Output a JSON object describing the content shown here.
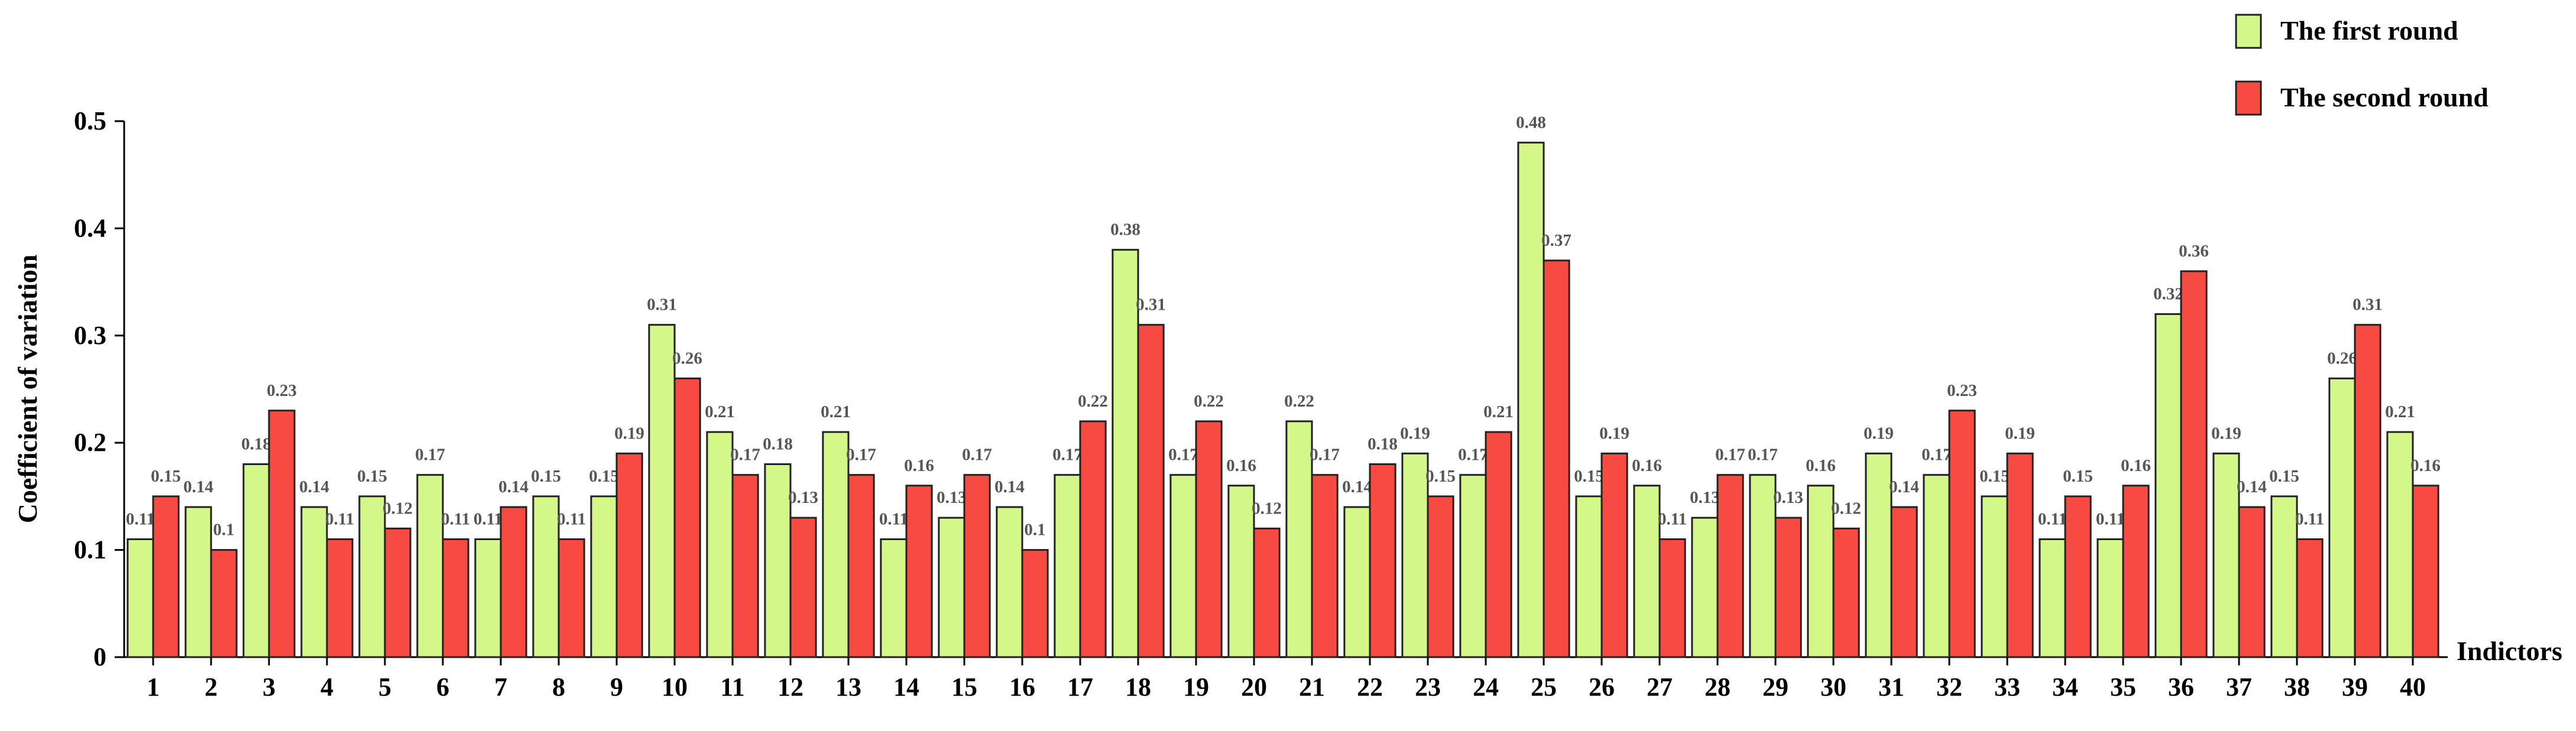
{
  "chart_data": {
    "type": "bar",
    "ylabel": "Coefficient of variation",
    "xlabel": "Indictors",
    "ylim": [
      0,
      0.5
    ],
    "yticks": [
      "0",
      "0.1",
      "0.2",
      "0.3",
      "0.4",
      "0.5"
    ],
    "categories": [
      "1",
      "2",
      "3",
      "4",
      "5",
      "6",
      "7",
      "8",
      "9",
      "10",
      "11",
      "12",
      "13",
      "14",
      "15",
      "16",
      "17",
      "18",
      "19",
      "20",
      "21",
      "22",
      "23",
      "24",
      "25",
      "26",
      "27",
      "28",
      "29",
      "30",
      "31",
      "32",
      "33",
      "34",
      "35",
      "36",
      "37",
      "38",
      "39",
      "40"
    ],
    "series": [
      {
        "name": "The first round",
        "color": "#d4f78a",
        "values": [
          0.11,
          0.14,
          0.18,
          0.14,
          0.15,
          0.17,
          0.11,
          0.15,
          0.15,
          0.31,
          0.21,
          0.18,
          0.21,
          0.11,
          0.13,
          0.14,
          0.17,
          0.38,
          0.17,
          0.16,
          0.22,
          0.14,
          0.19,
          0.17,
          0.48,
          0.15,
          0.16,
          0.13,
          0.17,
          0.16,
          0.19,
          0.17,
          0.15,
          0.11,
          0.11,
          0.32,
          0.19,
          0.15,
          0.26,
          0.21
        ]
      },
      {
        "name": "The second round",
        "color": "#f74a43",
        "values": [
          0.15,
          0.1,
          0.23,
          0.11,
          0.12,
          0.11,
          0.14,
          0.11,
          0.19,
          0.26,
          0.17,
          0.13,
          0.17,
          0.16,
          0.17,
          0.1,
          0.22,
          0.31,
          0.22,
          0.12,
          0.17,
          0.18,
          0.15,
          0.21,
          0.37,
          0.19,
          0.11,
          0.17,
          0.13,
          0.12,
          0.14,
          0.23,
          0.19,
          0.15,
          0.16,
          0.36,
          0.14,
          0.11,
          0.31,
          0.16
        ]
      }
    ],
    "legend_position": "top-right",
    "grid": false
  }
}
